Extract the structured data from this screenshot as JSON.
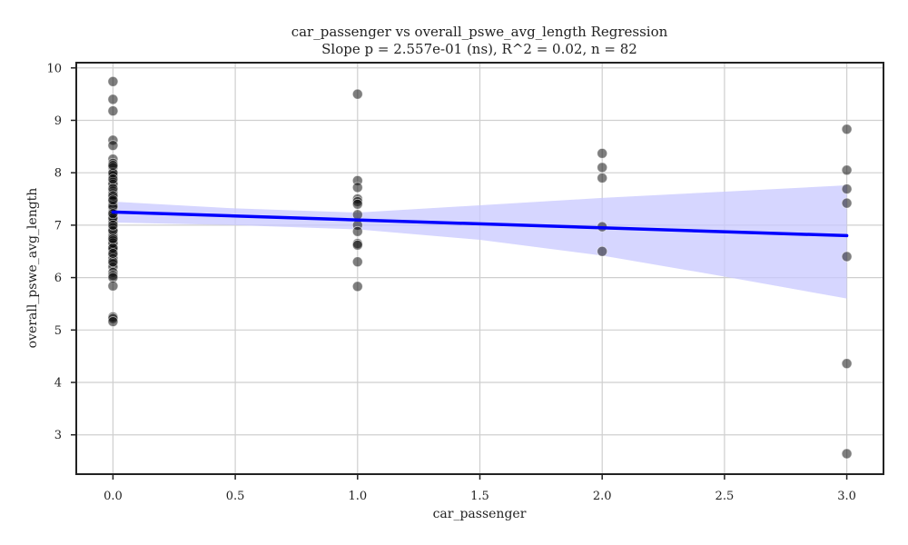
{
  "chart_data": {
    "type": "scatter",
    "title": "car_passenger vs overall_pswe_avg_length Regression",
    "subtitle": "Slope p = 2.557e-01 (ns), R^2 = 0.02, n = 82",
    "xlabel": "car_passenger",
    "ylabel": "overall_pswe_avg_length",
    "xlim": [
      -0.15,
      3.15
    ],
    "ylim": [
      2.25,
      10.1
    ],
    "xticks": [
      0.0,
      0.5,
      1.0,
      1.5,
      2.0,
      2.5,
      3.0
    ],
    "xtick_labels": [
      "0.0",
      "0.5",
      "1.0",
      "1.5",
      "2.0",
      "2.5",
      "3.0"
    ],
    "yticks": [
      3,
      4,
      5,
      6,
      7,
      8,
      9,
      10
    ],
    "ytick_labels": [
      "3",
      "4",
      "5",
      "6",
      "7",
      "8",
      "9",
      "10"
    ],
    "grid": true,
    "colors": {
      "points": "#000000",
      "regression_line": "#0000ff",
      "confidence_band": "#c8c8ff"
    },
    "points": [
      {
        "x": 0,
        "y": 9.74
      },
      {
        "x": 0,
        "y": 9.4
      },
      {
        "x": 0,
        "y": 9.18
      },
      {
        "x": 0,
        "y": 8.62
      },
      {
        "x": 0,
        "y": 8.52
      },
      {
        "x": 0,
        "y": 8.26
      },
      {
        "x": 0,
        "y": 8.18
      },
      {
        "x": 0,
        "y": 8.1
      },
      {
        "x": 0,
        "y": 7.98
      },
      {
        "x": 0,
        "y": 7.94
      },
      {
        "x": 0,
        "y": 7.82
      },
      {
        "x": 0,
        "y": 7.78
      },
      {
        "x": 0,
        "y": 7.65
      },
      {
        "x": 0,
        "y": 7.6
      },
      {
        "x": 0,
        "y": 7.52
      },
      {
        "x": 0,
        "y": 7.45
      },
      {
        "x": 0,
        "y": 7.4
      },
      {
        "x": 0,
        "y": 7.32
      },
      {
        "x": 0,
        "y": 7.25
      },
      {
        "x": 0,
        "y": 7.18
      },
      {
        "x": 0,
        "y": 7.1
      },
      {
        "x": 0,
        "y": 7.05
      },
      {
        "x": 0,
        "y": 6.95
      },
      {
        "x": 0,
        "y": 6.88
      },
      {
        "x": 0,
        "y": 6.82
      },
      {
        "x": 0,
        "y": 6.78
      },
      {
        "x": 0,
        "y": 6.7
      },
      {
        "x": 0,
        "y": 6.62
      },
      {
        "x": 0,
        "y": 6.58
      },
      {
        "x": 0,
        "y": 6.52
      },
      {
        "x": 0,
        "y": 6.42
      },
      {
        "x": 0,
        "y": 6.36
      },
      {
        "x": 0,
        "y": 6.26
      },
      {
        "x": 0,
        "y": 6.2
      },
      {
        "x": 0,
        "y": 6.1
      },
      {
        "x": 0,
        "y": 6.04
      },
      {
        "x": 0,
        "y": 6.0
      },
      {
        "x": 0,
        "y": 5.84
      },
      {
        "x": 0,
        "y": 5.25
      },
      {
        "x": 0,
        "y": 5.22
      },
      {
        "x": 0,
        "y": 5.16
      },
      {
        "x": 0,
        "y": 8.0
      },
      {
        "x": 0,
        "y": 7.7
      },
      {
        "x": 0,
        "y": 7.56
      },
      {
        "x": 0,
        "y": 7.14
      },
      {
        "x": 0,
        "y": 6.9
      },
      {
        "x": 0,
        "y": 6.66
      },
      {
        "x": 0,
        "y": 6.3
      },
      {
        "x": 0,
        "y": 7.36
      },
      {
        "x": 0,
        "y": 6.56
      },
      {
        "x": 0,
        "y": 7.0
      },
      {
        "x": 0,
        "y": 6.74
      },
      {
        "x": 0,
        "y": 7.48
      },
      {
        "x": 0,
        "y": 7.22
      },
      {
        "x": 0,
        "y": 6.46
      },
      {
        "x": 0,
        "y": 8.14
      },
      {
        "x": 0,
        "y": 7.88
      },
      {
        "x": 1,
        "y": 9.5
      },
      {
        "x": 1,
        "y": 7.85
      },
      {
        "x": 1,
        "y": 7.72
      },
      {
        "x": 1,
        "y": 7.5
      },
      {
        "x": 1,
        "y": 7.45
      },
      {
        "x": 1,
        "y": 7.4
      },
      {
        "x": 1,
        "y": 7.2
      },
      {
        "x": 1,
        "y": 7.0
      },
      {
        "x": 1,
        "y": 6.88
      },
      {
        "x": 1,
        "y": 6.65
      },
      {
        "x": 1,
        "y": 6.62
      },
      {
        "x": 1,
        "y": 6.3
      },
      {
        "x": 1,
        "y": 5.83
      },
      {
        "x": 2,
        "y": 8.37
      },
      {
        "x": 2,
        "y": 8.1
      },
      {
        "x": 2,
        "y": 7.9
      },
      {
        "x": 2,
        "y": 6.97
      },
      {
        "x": 2,
        "y": 6.5
      },
      {
        "x": 3,
        "y": 8.83
      },
      {
        "x": 3,
        "y": 8.05
      },
      {
        "x": 3,
        "y": 7.69
      },
      {
        "x": 3,
        "y": 7.42
      },
      {
        "x": 3,
        "y": 6.4
      },
      {
        "x": 3,
        "y": 4.36
      },
      {
        "x": 3,
        "y": 2.64
      }
    ],
    "regression": {
      "x": [
        0,
        3
      ],
      "y": [
        7.25,
        6.8
      ]
    },
    "confidence_band": {
      "x": [
        0,
        0.5,
        1,
        1.5,
        2,
        2.5,
        3
      ],
      "lower": [
        7.05,
        7.0,
        6.92,
        6.72,
        6.42,
        6.02,
        5.6
      ],
      "upper": [
        7.45,
        7.32,
        7.24,
        7.38,
        7.52,
        7.64,
        7.76
      ]
    }
  }
}
